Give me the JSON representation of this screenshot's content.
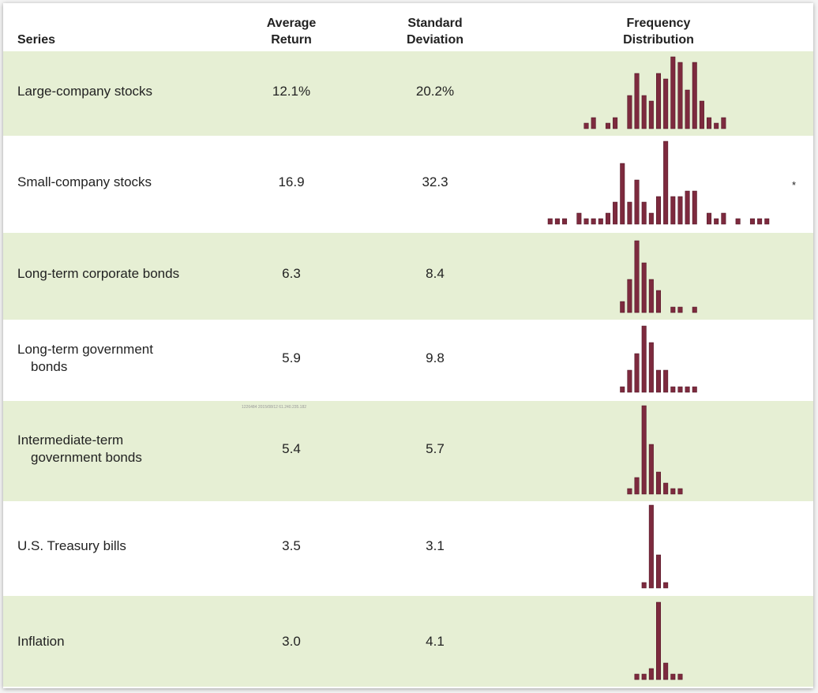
{
  "table": {
    "headers": {
      "series": [
        "Series"
      ],
      "average_return": [
        "Average",
        "Return"
      ],
      "standard_deviation": [
        "Standard",
        "Deviation"
      ],
      "frequency_distribution": [
        "Frequency",
        "Distribution"
      ]
    },
    "rows": [
      {
        "series": [
          "Large-company stocks"
        ],
        "average_return": "12.1%",
        "standard_deviation": "20.2%",
        "frequency_distribution": [
          0,
          0,
          0,
          0,
          0,
          1,
          2,
          0,
          1,
          2,
          0,
          6,
          10,
          6,
          5,
          10,
          9,
          13,
          12,
          7,
          12,
          5,
          2,
          1,
          2,
          0,
          0,
          0,
          0,
          0,
          0
        ]
      },
      {
        "series": [
          "Small-company stocks"
        ],
        "average_return": "16.9",
        "standard_deviation": "32.3",
        "frequency_distribution": [
          1,
          1,
          1,
          0,
          2,
          1,
          1,
          1,
          2,
          4,
          11,
          4,
          8,
          4,
          2,
          5,
          15,
          5,
          5,
          6,
          6,
          0,
          2,
          1,
          2,
          0,
          1,
          0,
          1,
          1,
          1
        ]
      },
      {
        "series": [
          "Long-term corporate bonds"
        ],
        "average_return": "6.3",
        "standard_deviation": "8.4",
        "frequency_distribution": [
          0,
          0,
          0,
          0,
          0,
          0,
          0,
          0,
          0,
          0,
          2,
          6,
          13,
          9,
          6,
          4,
          0,
          1,
          1,
          0,
          1,
          0,
          0,
          0,
          0,
          0,
          0,
          0,
          0,
          0,
          0
        ]
      },
      {
        "series": [
          "Long-term government",
          "bonds"
        ],
        "average_return": "5.9",
        "standard_deviation": "9.8",
        "frequency_distribution": [
          0,
          0,
          0,
          0,
          0,
          0,
          0,
          0,
          0,
          0,
          1,
          4,
          7,
          12,
          9,
          4,
          4,
          1,
          1,
          1,
          1,
          0,
          0,
          0,
          0,
          0,
          0,
          0,
          0,
          0,
          0
        ]
      },
      {
        "series": [
          "Intermediate-term",
          "government bonds"
        ],
        "average_return": "5.4",
        "standard_deviation": "5.7",
        "frequency_distribution": [
          0,
          0,
          0,
          0,
          0,
          0,
          0,
          0,
          0,
          0,
          0,
          1,
          3,
          16,
          9,
          4,
          2,
          1,
          1,
          0,
          0,
          0,
          0,
          0,
          0,
          0,
          0,
          0,
          0,
          0,
          0
        ]
      },
      {
        "series": [
          "U.S. Treasury bills"
        ],
        "average_return": "3.5",
        "standard_deviation": "3.1",
        "frequency_distribution": [
          0,
          0,
          0,
          0,
          0,
          0,
          0,
          0,
          0,
          0,
          0,
          0,
          0,
          1,
          15,
          6,
          1,
          0,
          0,
          0,
          0,
          0,
          0,
          0,
          0,
          0,
          0,
          0,
          0,
          0,
          0
        ]
      },
      {
        "series": [
          "Inflation"
        ],
        "average_return": "3.0",
        "standard_deviation": "4.1",
        "frequency_distribution": [
          0,
          0,
          0,
          0,
          0,
          0,
          0,
          0,
          0,
          0,
          0,
          0,
          1,
          1,
          2,
          14,
          3,
          1,
          1,
          0,
          0,
          0,
          0,
          0,
          0,
          0,
          0,
          0,
          0,
          0,
          0
        ]
      }
    ],
    "note_mark": "*",
    "watermark": "1226484 2015/08/12 61.240.235.182"
  }
}
